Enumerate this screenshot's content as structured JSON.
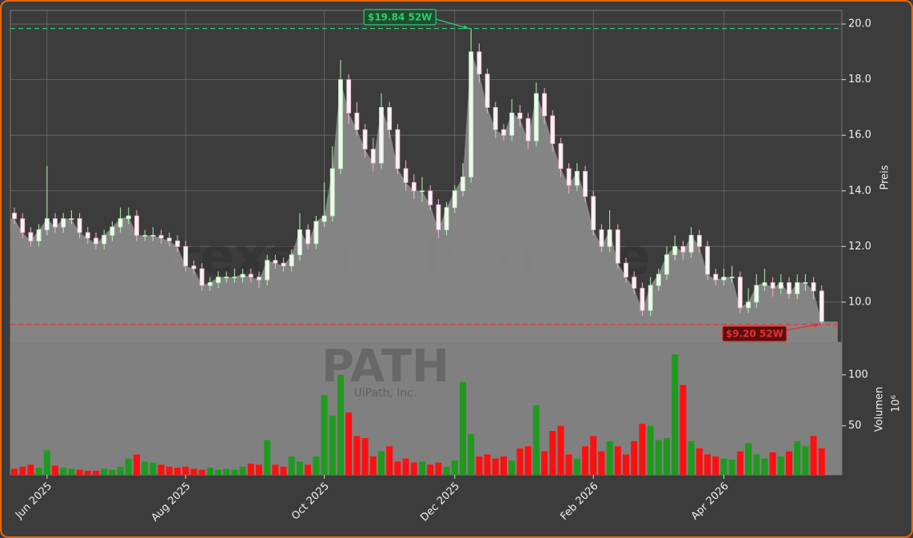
{
  "chart_data": [
    {
      "type": "candlestick",
      "y_label": "Preis",
      "watermarks": [
        "forexsignale.trade",
        "PATH",
        "UiPath, Inc."
      ],
      "ylim": [
        8.56,
        20.49
      ],
      "yticks": [
        {
          "value": 10,
          "label": "10.0"
        },
        {
          "value": 12,
          "label": "12.0"
        },
        {
          "value": 14,
          "label": "14.0"
        },
        {
          "value": 16,
          "label": "16.0"
        },
        {
          "value": 18,
          "label": "18.0"
        },
        {
          "value": 20,
          "label": "20.0"
        }
      ],
      "grid": true,
      "up_color": "#b8f0b8",
      "down_color": "#f4b4cc",
      "area_color": "#888888",
      "open": [
        13.2,
        13.0,
        12.5,
        12.2,
        12.6,
        13.0,
        12.7,
        13.0,
        13.0,
        12.5,
        12.3,
        12.1,
        12.4,
        12.7,
        13.0,
        13.1,
        12.4,
        12.4,
        12.4,
        12.3,
        12.2,
        12.0,
        11.3,
        11.2,
        10.6,
        10.7,
        10.9,
        10.9,
        10.9,
        11.0,
        10.9,
        10.8,
        11.5,
        11.4,
        11.3,
        11.7,
        12.6,
        12.1,
        12.9,
        13.1,
        14.8,
        18.0,
        16.8,
        16.2,
        15.5,
        15.0,
        17.0,
        16.2,
        14.8,
        14.3,
        14.0,
        14.0,
        13.5,
        12.6,
        13.4,
        14.0,
        14.5,
        19.0,
        18.2,
        17.0,
        16.2,
        16.0,
        16.8,
        16.6,
        15.8,
        17.5,
        16.7,
        15.7,
        14.8,
        14.2,
        14.7,
        13.8,
        12.6,
        12.0,
        12.6,
        11.4,
        10.9,
        10.5,
        9.7,
        10.6,
        11.0,
        11.7,
        12.0,
        11.8,
        12.4,
        12.0,
        11.0,
        10.8,
        10.9,
        10.9,
        9.8,
        10.0,
        10.6,
        10.7,
        10.5,
        10.7,
        10.3,
        10.7,
        10.7,
        10.4
      ],
      "high": [
        13.4,
        13.2,
        12.7,
        12.8,
        14.9,
        13.2,
        13.2,
        13.3,
        13.2,
        12.7,
        12.5,
        12.6,
        12.9,
        13.4,
        13.4,
        13.3,
        12.6,
        12.7,
        12.6,
        12.5,
        12.4,
        12.2,
        11.5,
        11.4,
        10.9,
        11.1,
        11.1,
        11.2,
        11.2,
        11.2,
        11.1,
        11.7,
        11.7,
        11.6,
        11.9,
        13.2,
        12.8,
        13.1,
        14.3,
        15.6,
        18.7,
        18.2,
        17.2,
        16.4,
        15.9,
        17.5,
        17.2,
        16.4,
        15.1,
        14.6,
        14.5,
        14.2,
        13.7,
        13.6,
        14.2,
        15.0,
        19.84,
        19.3,
        18.4,
        17.2,
        16.4,
        17.3,
        17.1,
        16.8,
        17.9,
        17.7,
        16.9,
        15.9,
        15.0,
        15.0,
        14.9,
        14.0,
        12.8,
        13.3,
        12.8,
        11.6,
        11.1,
        10.7,
        10.9,
        11.2,
        12.0,
        12.4,
        12.2,
        12.7,
        12.6,
        12.2,
        11.2,
        11.2,
        11.3,
        11.1,
        10.5,
        11.0,
        11.2,
        10.9,
        11.0,
        10.9,
        11.0,
        11.0,
        10.9,
        10.6
      ],
      "low": [
        12.8,
        12.3,
        12.0,
        12.0,
        12.4,
        12.5,
        12.5,
        12.8,
        12.3,
        12.1,
        11.9,
        11.9,
        12.2,
        12.5,
        12.8,
        12.2,
        12.2,
        12.2,
        12.1,
        12.0,
        11.8,
        11.1,
        11.0,
        10.4,
        10.4,
        10.5,
        10.7,
        10.7,
        10.7,
        10.7,
        10.5,
        10.6,
        11.2,
        11.1,
        11.1,
        11.5,
        11.9,
        11.9,
        12.7,
        12.9,
        14.6,
        16.4,
        16.0,
        15.2,
        14.7,
        14.8,
        15.9,
        14.6,
        14.0,
        13.7,
        13.6,
        13.3,
        12.3,
        12.4,
        13.2,
        13.8,
        14.3,
        17.9,
        16.8,
        15.9,
        15.8,
        15.8,
        16.3,
        15.5,
        15.6,
        16.4,
        15.4,
        14.5,
        13.9,
        14.0,
        13.6,
        12.4,
        11.8,
        11.8,
        11.2,
        10.7,
        10.3,
        9.5,
        9.5,
        10.4,
        10.8,
        11.5,
        11.5,
        11.6,
        11.8,
        10.8,
        10.6,
        10.6,
        10.7,
        9.6,
        9.6,
        9.8,
        10.4,
        10.2,
        10.3,
        10.1,
        10.1,
        10.4,
        10.1,
        9.2
      ],
      "close": [
        13.0,
        12.5,
        12.2,
        12.6,
        13.0,
        12.7,
        13.0,
        13.0,
        12.5,
        12.3,
        12.1,
        12.4,
        12.7,
        13.0,
        13.1,
        12.4,
        12.4,
        12.4,
        12.3,
        12.2,
        12.0,
        11.3,
        11.2,
        10.6,
        10.7,
        10.9,
        10.9,
        10.9,
        11.0,
        10.9,
        10.8,
        11.5,
        11.4,
        11.3,
        11.7,
        12.6,
        12.1,
        12.9,
        13.1,
        14.8,
        18.0,
        16.8,
        16.2,
        15.5,
        15.0,
        17.0,
        16.2,
        14.8,
        14.3,
        14.0,
        14.0,
        13.5,
        12.6,
        13.4,
        14.0,
        14.5,
        19.0,
        18.2,
        17.0,
        16.2,
        16.0,
        16.8,
        16.6,
        15.8,
        17.5,
        16.7,
        15.7,
        14.8,
        14.2,
        14.7,
        13.8,
        12.6,
        12.0,
        12.6,
        11.4,
        10.9,
        10.5,
        9.7,
        10.6,
        11.0,
        11.7,
        12.0,
        11.8,
        12.4,
        12.0,
        11.0,
        10.8,
        10.9,
        10.9,
        9.8,
        10.0,
        10.6,
        10.7,
        10.5,
        10.7,
        10.3,
        10.7,
        10.7,
        10.4,
        9.3
      ],
      "annotations": [
        {
          "label": "$19.84 52W",
          "value": 19.84,
          "color": "#2ecc71"
        },
        {
          "label": "$9.20 52W",
          "value": 9.2,
          "color": "#e83030"
        }
      ]
    },
    {
      "type": "bar",
      "y_label": "Volumen",
      "y_offset_label": "10⁶",
      "ylim": [
        2,
        132
      ],
      "yticks": [
        50,
        100
      ],
      "up_color": "#1f9a1f",
      "down_color": "#ff1010",
      "categories": [
        null,
        null,
        null,
        null,
        "Jun 2025",
        null,
        null,
        null,
        null,
        null,
        null,
        null,
        null,
        null,
        null,
        null,
        null,
        null,
        null,
        null,
        null,
        "Aug 2025",
        null,
        null,
        null,
        null,
        null,
        null,
        null,
        null,
        null,
        null,
        null,
        null,
        null,
        null,
        null,
        null,
        "Oct 2025",
        null,
        null,
        null,
        null,
        null,
        null,
        null,
        null,
        null,
        null,
        null,
        null,
        null,
        null,
        null,
        "Dec 2025",
        null,
        null,
        null,
        null,
        null,
        null,
        null,
        null,
        null,
        null,
        null,
        null,
        null,
        null,
        null,
        null,
        "Feb 2026",
        null,
        null,
        null,
        null,
        null,
        null,
        null,
        null,
        null,
        null,
        null,
        null,
        null,
        null,
        null,
        "Apr 2026",
        null,
        null,
        null,
        null,
        null,
        null,
        null,
        null,
        null,
        null,
        null,
        null
      ],
      "values": [
        8,
        10,
        12,
        9,
        26,
        11,
        9,
        8,
        7,
        6,
        6,
        8,
        7,
        10,
        18,
        22,
        15,
        14,
        12,
        10,
        9,
        10,
        8,
        7,
        9,
        7,
        8,
        7,
        10,
        13,
        12,
        36,
        12,
        10,
        20,
        15,
        12,
        20,
        80,
        60,
        100,
        63,
        40,
        38,
        20,
        25,
        30,
        15,
        18,
        14,
        15,
        12,
        14,
        10,
        16,
        93,
        42,
        20,
        22,
        18,
        20,
        16,
        28,
        30,
        70,
        25,
        45,
        50,
        22,
        18,
        30,
        40,
        25,
        35,
        30,
        22,
        35,
        52,
        50,
        36,
        38,
        120,
        90,
        35,
        28,
        22,
        20,
        18,
        17,
        25,
        33,
        22,
        18,
        24,
        20,
        25,
        35,
        30,
        40,
        28
      ]
    }
  ]
}
